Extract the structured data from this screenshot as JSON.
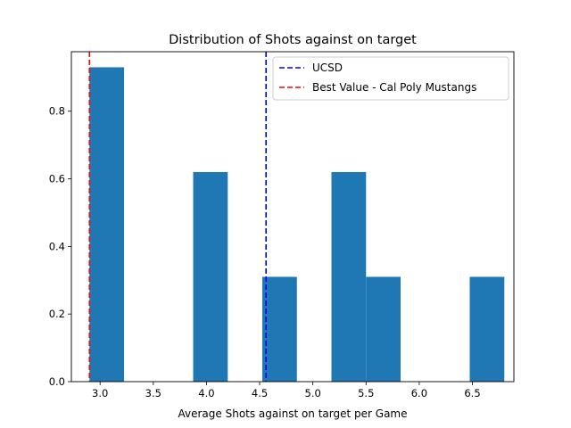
{
  "chart_data": {
    "type": "bar",
    "title": "Distribution of Shots against on target",
    "xlabel": "Average Shots against on target per Game",
    "ylabel": "",
    "xlim": [
      2.73,
      6.89
    ],
    "ylim": [
      0,
      0.976
    ],
    "bar_color": "#1f77b4",
    "bins": [
      {
        "x0": 2.9,
        "x1": 3.225,
        "value": 0.93
      },
      {
        "x0": 3.225,
        "x1": 3.55,
        "value": 0.0
      },
      {
        "x0": 3.55,
        "x1": 3.875,
        "value": 0.0
      },
      {
        "x0": 3.875,
        "x1": 4.2,
        "value": 0.62
      },
      {
        "x0": 4.2,
        "x1": 4.525,
        "value": 0.0
      },
      {
        "x0": 4.525,
        "x1": 4.85,
        "value": 0.31
      },
      {
        "x0": 4.85,
        "x1": 5.175,
        "value": 0.0
      },
      {
        "x0": 5.175,
        "x1": 5.5,
        "value": 0.62
      },
      {
        "x0": 5.5,
        "x1": 5.825,
        "value": 0.31
      },
      {
        "x0": 5.825,
        "x1": 6.15,
        "value": 0.0
      },
      {
        "x0": 6.15,
        "x1": 6.475,
        "value": 0.0
      },
      {
        "x0": 6.475,
        "x1": 6.8,
        "value": 0.31
      }
    ],
    "x_ticks": [
      "3.0",
      "3.5",
      "4.0",
      "4.5",
      "5.0",
      "5.5",
      "6.0",
      "6.5"
    ],
    "y_ticks": [
      "0.0",
      "0.2",
      "0.4",
      "0.6",
      "0.8"
    ],
    "vlines": [
      {
        "label": "UCSD",
        "x": 4.56,
        "color": "#0000ff"
      },
      {
        "label": "Best Value - Cal Poly Mustangs",
        "x": 2.9,
        "color": "#ff0000"
      }
    ],
    "legend_position": "top-right",
    "grid": false
  }
}
